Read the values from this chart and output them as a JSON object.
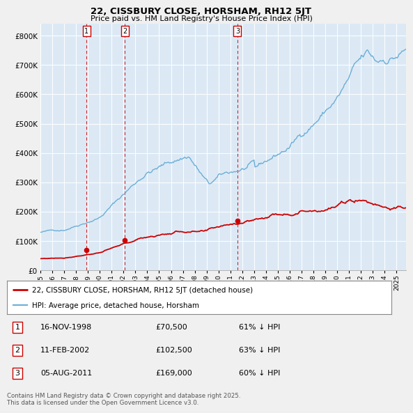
{
  "title1": "22, CISSBURY CLOSE, HORSHAM, RH12 5JT",
  "title2": "Price paid vs. HM Land Registry's House Price Index (HPI)",
  "bg_color": "#f0f0f0",
  "plot_bg_color": "#dce9f5",
  "hpi_color": "#6baed6",
  "price_color": "#cc0000",
  "vline_color": "#cc0000",
  "grid_color": "#ffffff",
  "transactions": [
    {
      "num": 1,
      "date_x": 1998.88,
      "price": 70500
    },
    {
      "num": 2,
      "date_x": 2002.12,
      "price": 102500
    },
    {
      "num": 3,
      "date_x": 2011.6,
      "price": 169000
    }
  ],
  "legend_label_price": "22, CISSBURY CLOSE, HORSHAM, RH12 5JT (detached house)",
  "legend_label_hpi": "HPI: Average price, detached house, Horsham",
  "footnote": "Contains HM Land Registry data © Crown copyright and database right 2025.\nThis data is licensed under the Open Government Licence v3.0.",
  "table": [
    {
      "num": "1",
      "date": "16-NOV-1998",
      "price": "£70,500",
      "pct": "61% ↓ HPI"
    },
    {
      "num": "2",
      "date": "11-FEB-2002",
      "price": "£102,500",
      "pct": "63% ↓ HPI"
    },
    {
      "num": "3",
      "date": "05-AUG-2011",
      "price": "£169,000",
      "pct": "60% ↓ HPI"
    }
  ],
  "yticks": [
    0,
    100000,
    200000,
    300000,
    400000,
    500000,
    600000,
    700000,
    800000
  ],
  "ylim": [
    0,
    840000
  ],
  "xlim_start": 1995.0,
  "xlim_end": 2025.8,
  "xticks": [
    1995,
    1996,
    1997,
    1998,
    1999,
    2000,
    2001,
    2002,
    2003,
    2004,
    2005,
    2006,
    2007,
    2008,
    2009,
    2010,
    2011,
    2012,
    2013,
    2014,
    2015,
    2016,
    2017,
    2018,
    2019,
    2020,
    2021,
    2022,
    2023,
    2024,
    2025
  ]
}
